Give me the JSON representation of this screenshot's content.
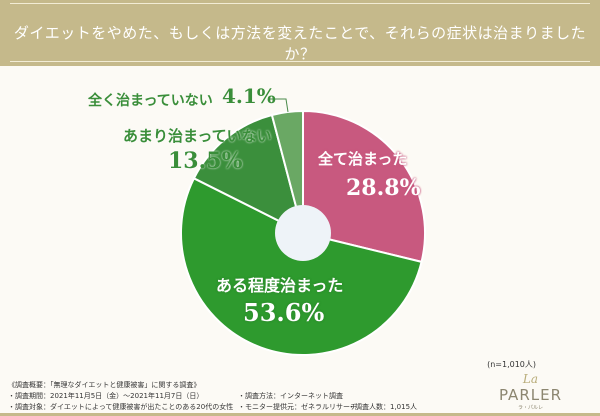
{
  "header": {
    "title": "ダイエットをやめた、もしくは方法を変えたことで、それらの症状は治まりましたか？"
  },
  "chart_data": {
    "type": "pie",
    "donut": true,
    "title": "ダイエットをやめた、もしくは方法を変えたことで、それらの症状は治まりましたか？",
    "categories": [
      "全て治まった",
      "ある程度治まった",
      "あまり治まっていない",
      "全く治まっていない"
    ],
    "values": [
      28.8,
      53.6,
      13.5,
      4.1
    ],
    "value_labels": [
      "28.8%",
      "53.6%",
      "13.5%",
      "4.1%"
    ],
    "colors": [
      "#c8597f",
      "#2e9a2e",
      "#3b8f3c",
      "#6aa864"
    ],
    "note": "(n=1,010人)"
  },
  "footer": {
    "survey_title": "《調査概要：「無理なダイエットと健康被害」に関する調査》",
    "period": "・調査期間：2021年11月5日（金）～2021年11月7日（日）",
    "target": "・調査対象：ダイエットによって健康被害が出たことのある20代の女性",
    "method": "・調査方法：インターネット調査",
    "provider": "・モニター提供元：ゼネラルリサーチ",
    "count": "・調査人数：1,015人"
  },
  "logo": {
    "la": "La",
    "name": "PARLER",
    "sub": "ラ・パルレ"
  }
}
